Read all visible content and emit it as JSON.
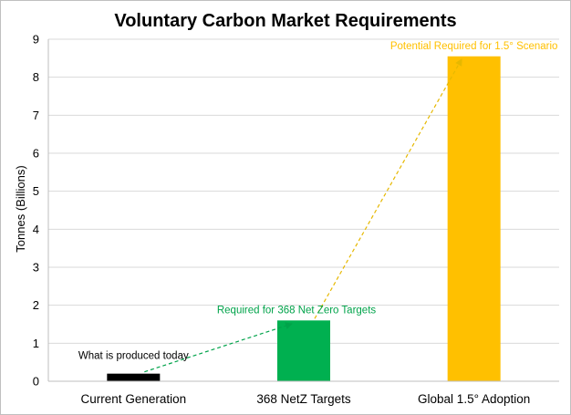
{
  "chart_data": {
    "type": "bar",
    "title": "Voluntary Carbon Market Requirements",
    "xlabel": "",
    "ylabel": "Tonnes (Billions)",
    "ylim": [
      0,
      9
    ],
    "yticks": [
      0,
      1,
      2,
      3,
      4,
      5,
      6,
      7,
      8,
      9
    ],
    "grid": true,
    "legend": "none",
    "categories": [
      "Current Generation",
      "368 NetZ Targets",
      "Global 1.5° Adoption"
    ],
    "values": [
      0.2,
      1.6,
      8.55
    ],
    "colors": [
      "#000000",
      "#00b050",
      "#ffc000"
    ],
    "annotations": [
      {
        "text": "What is produced today",
        "category": 0,
        "color": "#000000"
      },
      {
        "text": "Required for 368 Net Zero Targets",
        "category": 1,
        "color": "#00a34a"
      },
      {
        "text": "Potential Required for 1.5° Scenario",
        "category": 2,
        "color": "#ffc000"
      }
    ],
    "arrows": [
      {
        "from": 0,
        "to": 1,
        "color": "#00a34a"
      },
      {
        "from": 1,
        "to": 2,
        "color": "#e6b800"
      }
    ]
  }
}
